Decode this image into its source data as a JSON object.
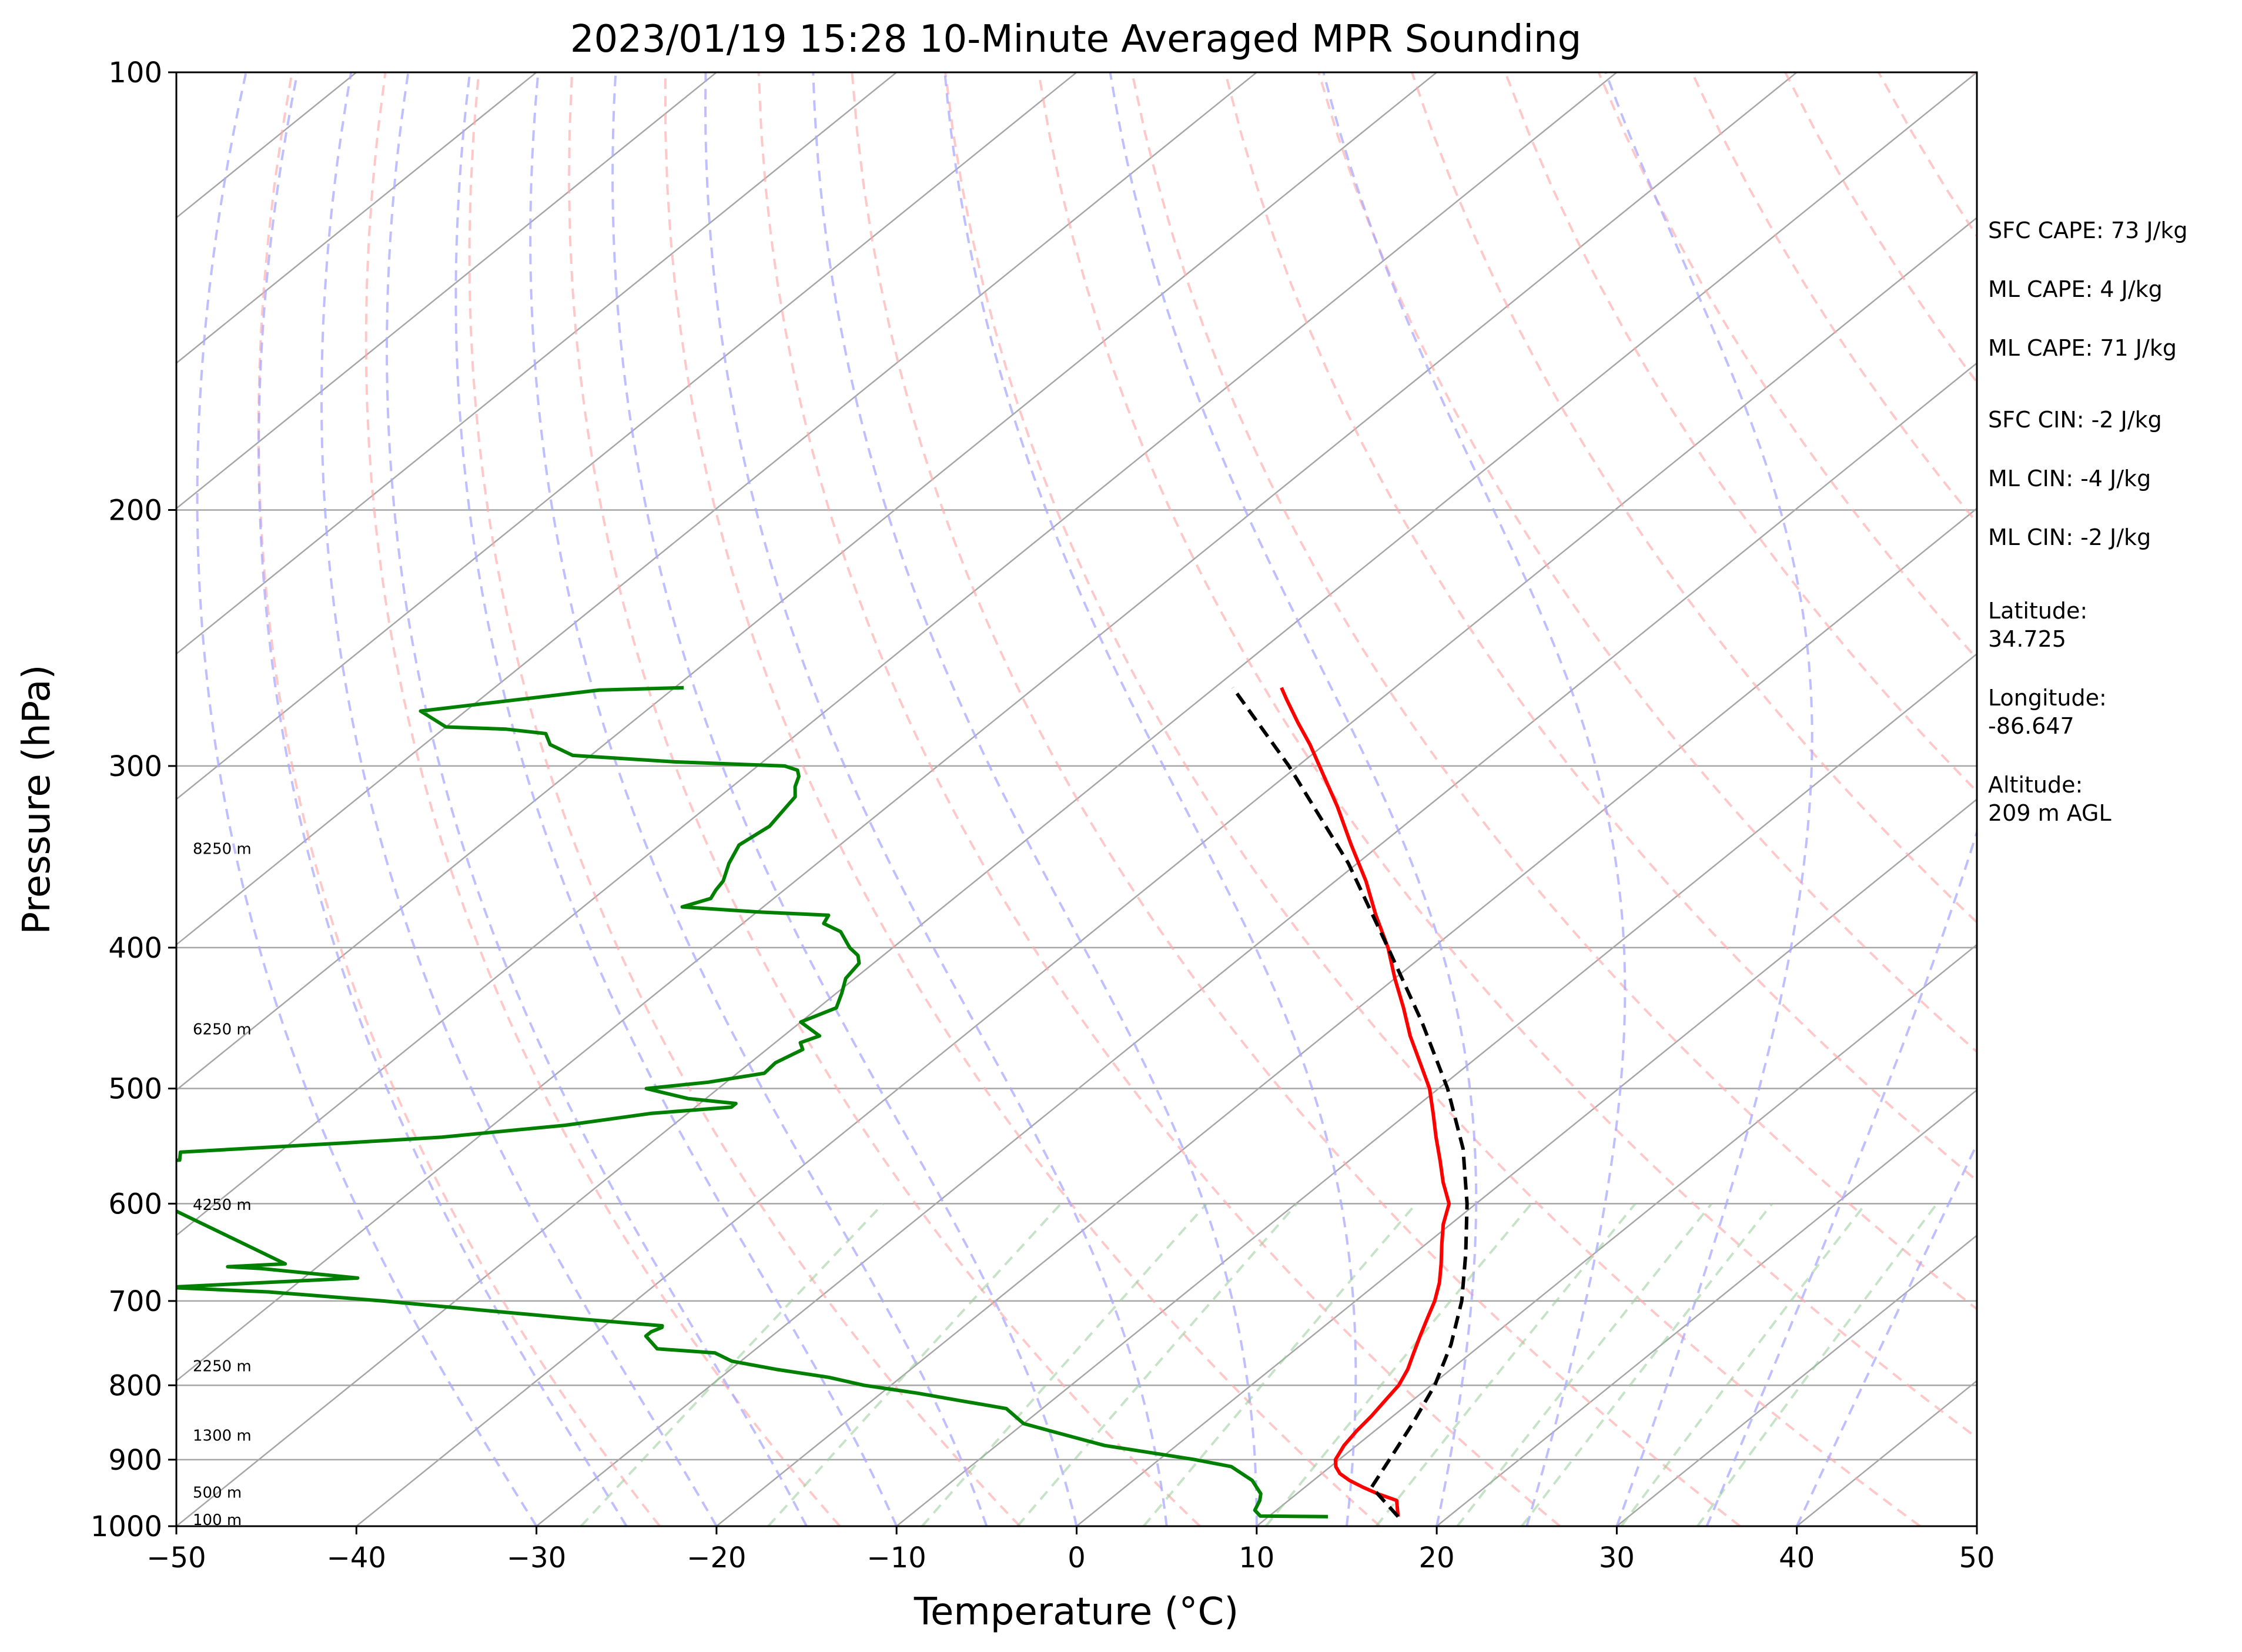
{
  "chart_data": {
    "type": "line",
    "subtype": "skew-t log-p",
    "title": "2023/01/19 15:28 10-Minute Averaged MPR Sounding",
    "xlabel": "Temperature (°C)",
    "ylabel": "Pressure (hPa)",
    "xlim": [
      -50,
      50
    ],
    "ylim": [
      1000,
      100
    ],
    "y_scale": "log",
    "grid": true,
    "x_ticks": [
      "−50",
      "−40",
      "−30",
      "−20",
      "−10",
      "0",
      "10",
      "20",
      "30",
      "40",
      "50"
    ],
    "y_ticks": [
      "1000",
      "900",
      "800",
      "700",
      "600",
      "500",
      "400",
      "300",
      "200",
      "100"
    ],
    "height_labels": [
      {
        "p": 990,
        "text": "100 m"
      },
      {
        "p": 948,
        "text": "500 m"
      },
      {
        "p": 866,
        "text": "1300 m"
      },
      {
        "p": 776,
        "text": "2250 m"
      },
      {
        "p": 601,
        "text": "4250 m"
      },
      {
        "p": 455,
        "text": "6250 m"
      },
      {
        "p": 342,
        "text": "8250 m"
      }
    ],
    "info": [
      "SFC CAPE: 73 J/kg",
      "ML CAPE: 4 J/kg",
      "ML CAPE: 71 J/kg",
      "SFC CIN: -2 J/kg",
      "ML CIN: -4 J/kg",
      "ML CIN: -2 J/kg",
      "Latitude:\n34.725",
      "Longitude:\n-86.647",
      "Altitude:\n209 m AGL"
    ],
    "colors": {
      "temperature": "#ff0000",
      "dewpoint": "#008000",
      "parcel": "#000000",
      "isotherm": "#a6a6a6",
      "dry_adiabat": "#ffaaaa",
      "moist_adiabat": "#aaaaff",
      "mixing_ratio": "#99cc99"
    },
    "series": [
      {
        "key": "temperature",
        "p": [
          985,
          960,
          950,
          940,
          930,
          920,
          910,
          900,
          880,
          860,
          840,
          820,
          800,
          780,
          760,
          740,
          720,
          700,
          680,
          660,
          640,
          620,
          600,
          580,
          560,
          540,
          520,
          500,
          480,
          460,
          440,
          420,
          400,
          380,
          360,
          340,
          320,
          300,
          290,
          280,
          270,
          265
        ],
        "values": [
          17.2,
          16.0,
          14.5,
          13.2,
          12.0,
          11.0,
          10.3,
          9.8,
          9.3,
          9.0,
          8.8,
          8.5,
          8.2,
          7.6,
          6.8,
          6.0,
          5.2,
          4.4,
          3.4,
          2.2,
          0.9,
          -0.4,
          -1.5,
          -3.3,
          -5.0,
          -6.8,
          -8.6,
          -10.5,
          -12.8,
          -15.2,
          -17.5,
          -20.0,
          -22.5,
          -25.4,
          -28.3,
          -31.6,
          -35.0,
          -38.8,
          -40.8,
          -43.0,
          -45.2,
          -46.3
        ]
      },
      {
        "key": "dewpoint",
        "p": [
          985,
          984,
          975,
          960,
          950,
          930,
          910,
          900,
          880,
          870,
          860,
          850,
          830,
          820,
          810,
          800,
          790,
          780,
          770,
          760,
          755,
          740,
          735,
          730,
          728,
          720,
          710,
          700,
          690,
          685,
          675,
          665,
          663,
          660,
          570,
          568,
          560,
          553,
          545,
          540,
          530,
          520,
          515,
          512,
          508,
          500,
          495,
          488,
          480,
          470,
          465,
          460,
          450,
          440,
          430,
          420,
          410,
          405,
          400,
          390,
          385,
          380,
          378,
          375,
          370,
          365,
          360,
          350,
          340,
          330,
          320,
          315,
          310,
          305,
          302,
          300,
          298,
          295,
          290,
          285,
          283,
          282,
          275,
          266,
          265
        ],
        "values": [
          13.3,
          9.5,
          8.8,
          8.4,
          8.0,
          6.6,
          4.5,
          2.0,
          -4.0,
          -6.0,
          -8.0,
          -10.0,
          -12.0,
          -15.0,
          -18.0,
          -21.5,
          -24.0,
          -27.5,
          -30.5,
          -32.0,
          -35.5,
          -37.0,
          -37.0,
          -36.7,
          -36.8,
          -42.0,
          -48.0,
          -54.0,
          -61.0,
          -67.0,
          -57.0,
          -63.0,
          -65.0,
          -62.0,
          -79.0,
          -82.0,
          -75.0,
          -75.5,
          -67.0,
          -62.0,
          -56.0,
          -52.0,
          -48.0,
          -48.0,
          -51.0,
          -54.0,
          -51.0,
          -48.5,
          -48.6,
          -48.0,
          -48.6,
          -48.0,
          -50.0,
          -49.0,
          -49.7,
          -50.5,
          -50.8,
          -51.4,
          -52.4,
          -54.0,
          -55.5,
          -55.8,
          -60.0,
          -64.5,
          -63.5,
          -63.8,
          -64.0,
          -64.9,
          -65.6,
          -65.2,
          -65.6,
          -65.8,
          -66.5,
          -67.0,
          -67.5,
          -68.5,
          -75.0,
          -81.0,
          -83.0,
          -84.0,
          -86.5,
          -90.0,
          -92.5,
          -84.0,
          -79.5
        ]
      },
      {
        "key": "parcel",
        "p": [
          985,
          940,
          900,
          850,
          800,
          750,
          700,
          650,
          600,
          550,
          500,
          450,
          400,
          350,
          300,
          265
        ],
        "values": [
          17.2,
          13.7,
          12.8,
          11.6,
          10.2,
          8.3,
          5.9,
          2.9,
          -0.5,
          -4.5,
          -9.5,
          -15.5,
          -22.5,
          -30.5,
          -40.5,
          -49.0
        ]
      }
    ]
  }
}
